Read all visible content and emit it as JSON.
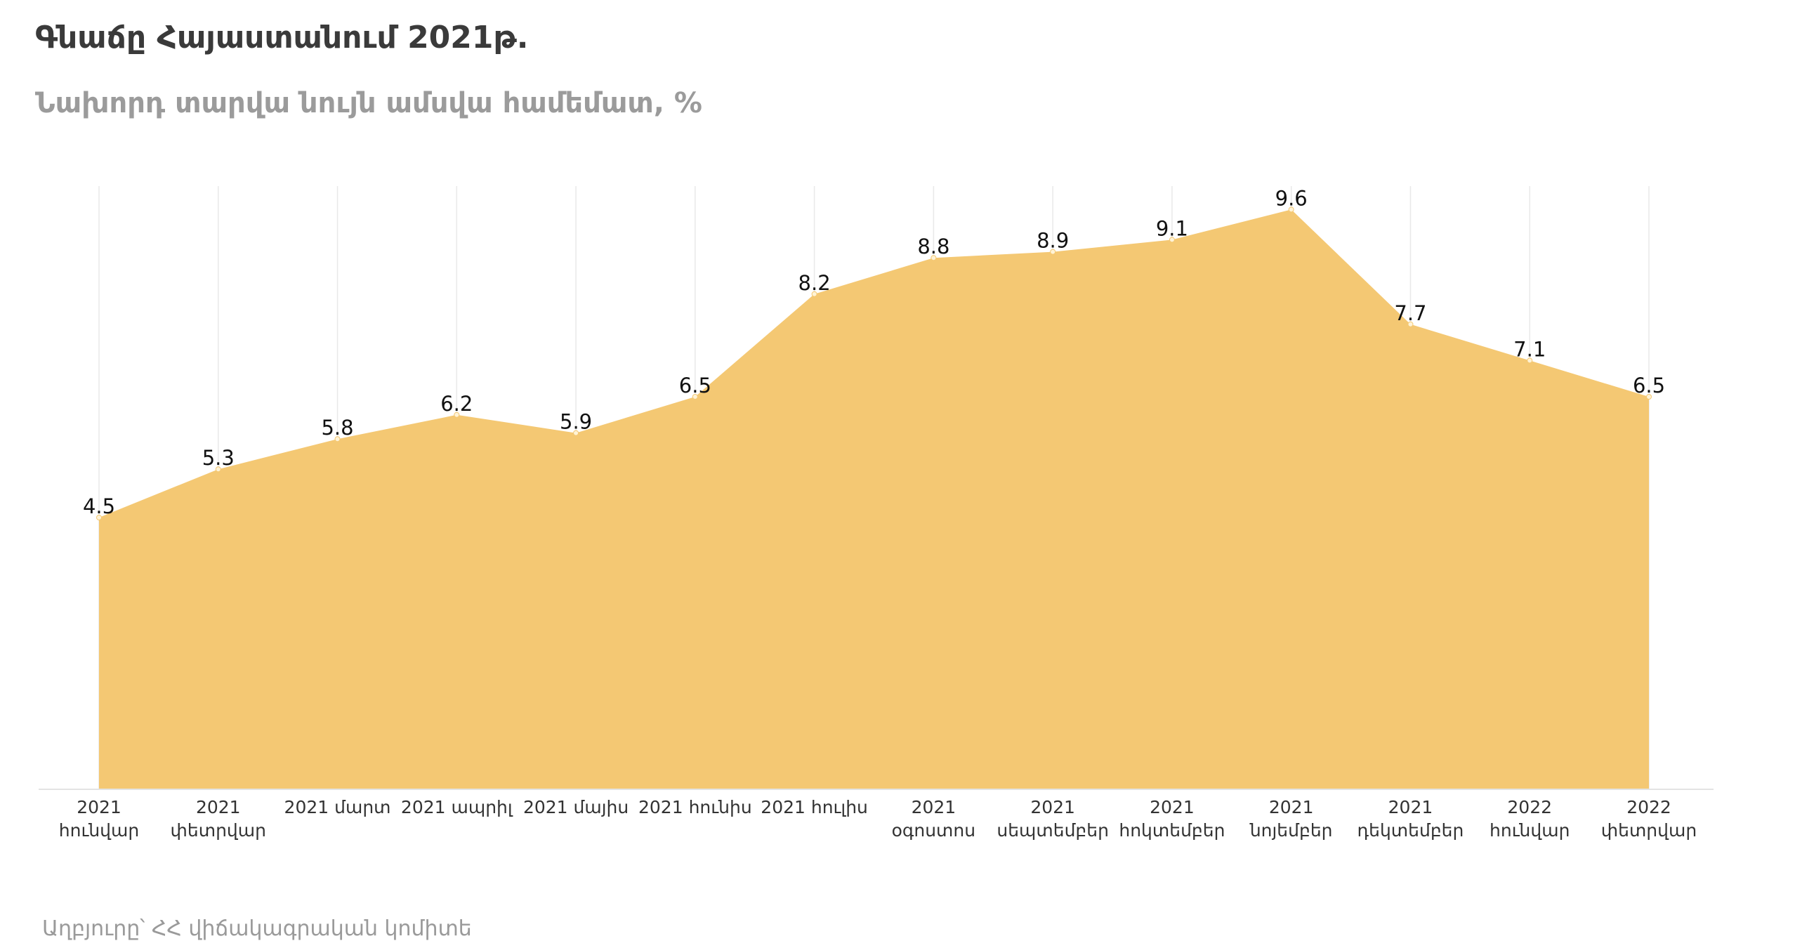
{
  "header": {
    "title": "Գնաճը Հայաստանում 2021թ.",
    "subtitle": "Նախորդ տարվա նույն ամսվա համեմատ, %"
  },
  "footer": {
    "source": "Աղբյուրը՝ ՀՀ վիճակագրական կոմիտե"
  },
  "colors": {
    "area_fill": "#f4c873",
    "title": "#3a3a3a",
    "subtitle": "#9b9b9b"
  },
  "chart_data": {
    "type": "area",
    "title": "Գնաճը Հայաստանում 2021թ.",
    "subtitle": "Նախորդ տարվա նույն ամսվա համեմատ, %",
    "xlabel": "",
    "ylabel": "",
    "ylim": [
      0,
      10
    ],
    "grid": "vertical",
    "legend": "none",
    "categories": [
      [
        "2021",
        "հունվար"
      ],
      [
        "2021",
        "փետրվար"
      ],
      [
        "2021 մարտ"
      ],
      [
        "2021 ապրիլ"
      ],
      [
        "2021 մայիս"
      ],
      [
        "2021 հունիս"
      ],
      [
        "2021 հուլիս"
      ],
      [
        "2021",
        "օգոստոս"
      ],
      [
        "2021",
        "սեպտեմբեր"
      ],
      [
        "2021",
        "հոկտեմբեր"
      ],
      [
        "2021",
        "նոյեմբեր"
      ],
      [
        "2021",
        "դեկտեմբեր"
      ],
      [
        "2022",
        "հունվար"
      ],
      [
        "2022",
        "փետրվար"
      ]
    ],
    "values": [
      4.5,
      5.3,
      5.8,
      6.2,
      5.9,
      6.5,
      8.2,
      8.8,
      8.9,
      9.1,
      9.6,
      7.7,
      7.1,
      6.5
    ]
  }
}
